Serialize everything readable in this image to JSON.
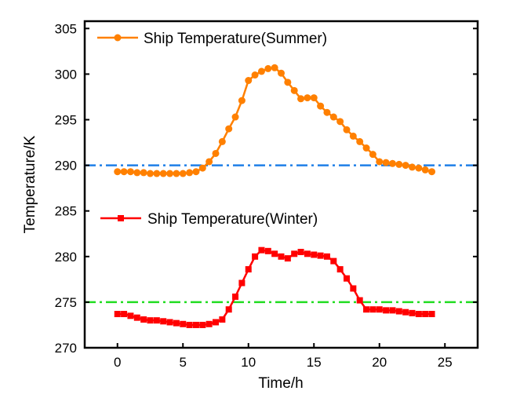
{
  "chart_data": {
    "type": "line",
    "xlabel": "Time/h",
    "ylabel": "Temperature/K",
    "xlim": [
      -2.5,
      27.5
    ],
    "ylim": [
      270,
      305.8
    ],
    "xticks": [
      "0",
      "5",
      "10",
      "15",
      "20",
      "25"
    ],
    "yticks": [
      "270",
      "275",
      "280",
      "285",
      "290",
      "295",
      "300",
      "305"
    ],
    "grid": false,
    "x": [
      0,
      0.5,
      1,
      1.5,
      2,
      2.5,
      3,
      3.5,
      4,
      4.5,
      5,
      5.5,
      6,
      6.5,
      7,
      7.5,
      8,
      8.5,
      9,
      9.5,
      10,
      10.5,
      11,
      11.5,
      12,
      12.5,
      13,
      13.5,
      14,
      14.5,
      15,
      15.5,
      16,
      16.5,
      17,
      17.5,
      18,
      18.5,
      19,
      19.5,
      20,
      20.5,
      21,
      21.5,
      22,
      22.5,
      23,
      23.5,
      24
    ],
    "series": [
      {
        "name": "Ship Temperature(Summer)",
        "color": "#ff8000",
        "marker": "circle",
        "values": [
          289.3,
          289.3,
          289.3,
          289.2,
          289.2,
          289.1,
          289.1,
          289.1,
          289.1,
          289.1,
          289.1,
          289.2,
          289.3,
          289.7,
          290.4,
          291.3,
          292.6,
          294.0,
          295.3,
          297.1,
          299.3,
          299.9,
          300.3,
          300.6,
          300.7,
          300.1,
          299.1,
          298.2,
          297.3,
          297.4,
          297.4,
          296.5,
          295.8,
          295.3,
          294.8,
          293.9,
          293.2,
          292.6,
          291.9,
          291.2,
          290.4,
          290.3,
          290.2,
          290.1,
          290.0,
          289.8,
          289.7,
          289.5,
          289.3
        ]
      },
      {
        "name": "Ship Temperature(Winter)",
        "color": "#ff0000",
        "marker": "square",
        "values": [
          273.7,
          273.7,
          273.5,
          273.3,
          273.1,
          273.0,
          273.0,
          272.9,
          272.8,
          272.7,
          272.6,
          272.5,
          272.5,
          272.5,
          272.6,
          272.8,
          273.1,
          274.2,
          275.6,
          277.1,
          278.6,
          280.0,
          280.7,
          280.6,
          280.3,
          280.0,
          279.8,
          280.3,
          280.5,
          280.3,
          280.2,
          280.1,
          280.0,
          279.5,
          278.6,
          277.6,
          276.5,
          275.2,
          274.2,
          274.2,
          274.2,
          274.1,
          274.1,
          274.0,
          273.9,
          273.8,
          273.7,
          273.7,
          273.7
        ]
      }
    ],
    "reference_lines": [
      {
        "y": 290,
        "color": "#1f7fe8",
        "style": "dash-dot"
      },
      {
        "y": 275,
        "color": "#22dd22",
        "style": "dash-dot"
      }
    ],
    "legend": [
      "Ship Temperature(Summer)",
      "Ship Temperature(Winter)"
    ]
  }
}
